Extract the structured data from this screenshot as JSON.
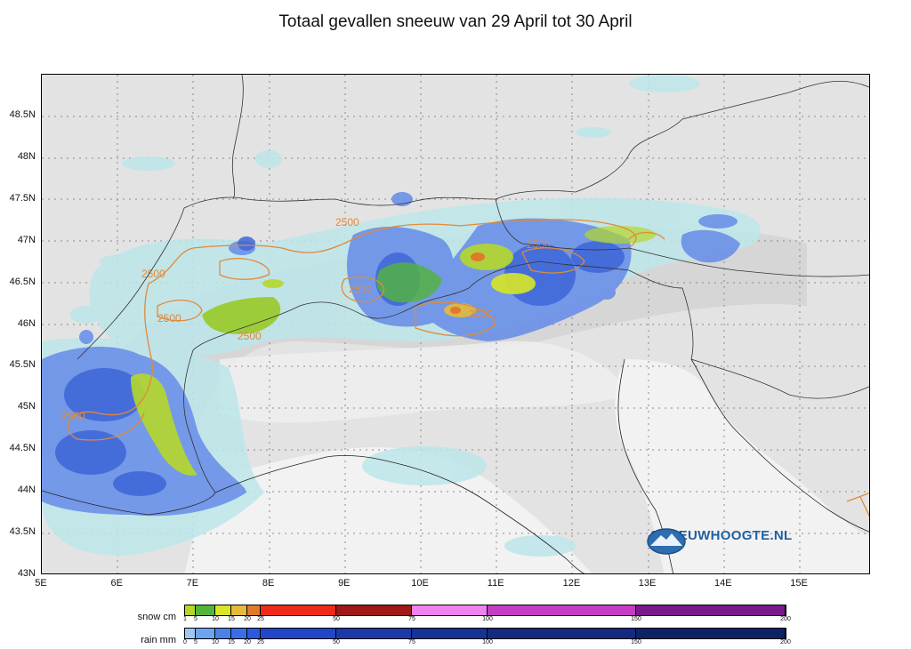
{
  "title": "Totaal gevallen sneeuw van 29 April tot 30 April",
  "map": {
    "lat_labels": [
      "48.5N",
      "48N",
      "47.5N",
      "47N",
      "46.5N",
      "46N",
      "45.5N",
      "45N",
      "44.5N",
      "44N",
      "43.5N",
      "43N"
    ],
    "lon_labels": [
      "5E",
      "6E",
      "7E",
      "8E",
      "9E",
      "10E",
      "11E",
      "12E",
      "13E",
      "14E",
      "15E"
    ],
    "contour_labels": [
      "2500",
      "2500",
      "2500",
      "2500",
      "2500",
      "2500",
      "2500",
      "2500"
    ]
  },
  "legend": {
    "snow": {
      "label": "snow cm",
      "ticks": [
        "1",
        "5",
        "10",
        "15",
        "20",
        "25",
        "50",
        "75",
        "100",
        "150",
        "200"
      ],
      "colors": [
        "#b5d72a",
        "#52b43a",
        "#d8e626",
        "#e6b93a",
        "#e07a2a",
        "#ee2a1a",
        "#a01818",
        "#ee82ee",
        "#c43cc4",
        "#7a1a8a"
      ]
    },
    "rain": {
      "label": "rain mm",
      "ticks": [
        "0",
        "5",
        "10",
        "15",
        "20",
        "25",
        "50",
        "75",
        "100",
        "150",
        "200"
      ],
      "colors": [
        "#9ec6f0",
        "#6ea4ee",
        "#4a82ea",
        "#3a6ee6",
        "#2c5ade",
        "#2246c8",
        "#1a3aa8",
        "#163294",
        "#122a80",
        "#0e2268"
      ]
    }
  },
  "logo": {
    "text": "SNEEUWHOOGTE.NL",
    "icon": "mountain-globe-icon"
  }
}
